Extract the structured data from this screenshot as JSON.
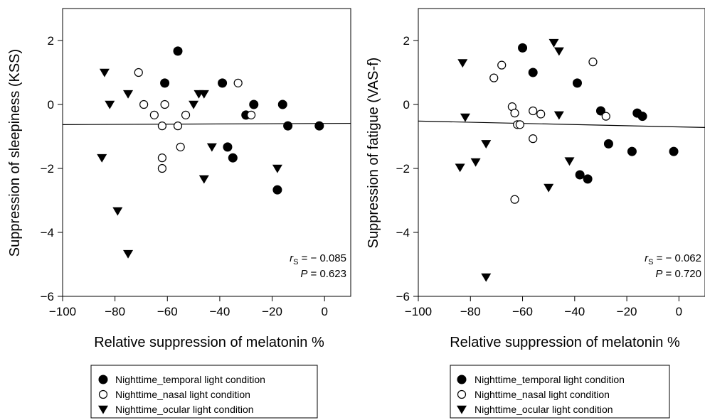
{
  "chart_data": [
    {
      "type": "scatter",
      "xlabel": "Relative suppression of melatonin %",
      "ylabel": "Suppression of sleepiness (KSS)",
      "xlim": [
        -100,
        10
      ],
      "ylim": [
        -6,
        3
      ],
      "xticks": [
        "−100",
        "−80",
        "−60",
        "−40",
        "−20",
        "0"
      ],
      "yticks": [
        "−6",
        "−4",
        "−2",
        "0",
        "2"
      ],
      "stat_rs_symbol": "r",
      "stat_rs_sub": "S",
      "stat_rs_value": " = − 0.085",
      "stat_p_symbol": "P",
      "stat_p_value": " = 0.623",
      "fit_line": [
        [
          -100,
          -0.63
        ],
        [
          10,
          -0.59
        ]
      ],
      "series": [
        {
          "name": "Nighttime_temporal light condition",
          "marker": "filled-circle",
          "points": [
            [
              -56,
              1.67
            ],
            [
              -61,
              0.67
            ],
            [
              -39,
              0.67
            ],
            [
              -27,
              0
            ],
            [
              -16,
              0
            ],
            [
              -30,
              -0.33
            ],
            [
              -14,
              -0.67
            ],
            [
              -2,
              -0.67
            ],
            [
              -37,
              -1.33
            ],
            [
              -35,
              -1.67
            ],
            [
              -18,
              -2.67
            ]
          ]
        },
        {
          "name": "Nighttime_nasal light condition",
          "marker": "open-circle",
          "points": [
            [
              -71,
              1.0
            ],
            [
              -33,
              0.67
            ],
            [
              -69,
              0
            ],
            [
              -61,
              0
            ],
            [
              -65,
              -0.33
            ],
            [
              -53,
              -0.33
            ],
            [
              -28,
              -0.33
            ],
            [
              -62,
              -0.67
            ],
            [
              -56,
              -0.67
            ],
            [
              -55,
              -1.33
            ],
            [
              -62,
              -1.67
            ],
            [
              -62,
              -2.0
            ]
          ]
        },
        {
          "name": "Nighttime_ocular light condition",
          "marker": "filled-triangle",
          "points": [
            [
              -84,
              1.0
            ],
            [
              -75,
              0.33
            ],
            [
              -48,
              0.33
            ],
            [
              -46,
              0.33
            ],
            [
              -82,
              0
            ],
            [
              -50,
              0
            ],
            [
              -85,
              -1.67
            ],
            [
              -43,
              -1.33
            ],
            [
              -46,
              -2.33
            ],
            [
              -18,
              -2.0
            ],
            [
              -79,
              -3.33
            ],
            [
              -75,
              -4.67
            ]
          ]
        }
      ]
    },
    {
      "type": "scatter",
      "xlabel": "Relative suppression of melatonin %",
      "ylabel": "Suppression of fatigue (VAS-f)",
      "xlim": [
        -100,
        10
      ],
      "ylim": [
        -6,
        3
      ],
      "xticks": [
        "−100",
        "−80",
        "−60",
        "−40",
        "−20",
        "0"
      ],
      "yticks": [
        "−6",
        "−4",
        "−2",
        "0",
        "2"
      ],
      "stat_rs_symbol": "r",
      "stat_rs_sub": "S",
      "stat_rs_value": " = − 0.062",
      "stat_p_symbol": "P",
      "stat_p_value": " = 0.720",
      "fit_line": [
        [
          -100,
          -0.52
        ],
        [
          10,
          -0.72
        ]
      ],
      "series": [
        {
          "name": "Nighttime_temporal light condition",
          "marker": "filled-circle",
          "points": [
            [
              -60,
              1.77
            ],
            [
              -56,
              1.0
            ],
            [
              -39,
              0.67
            ],
            [
              -30,
              -0.2
            ],
            [
              -16,
              -0.27
            ],
            [
              -14,
              -0.37
            ],
            [
              -27,
              -1.23
            ],
            [
              -18,
              -1.47
            ],
            [
              -2,
              -1.47
            ],
            [
              -38,
              -2.2
            ],
            [
              -35,
              -2.33
            ]
          ]
        },
        {
          "name": "Nighttime_nasal light condition",
          "marker": "open-circle",
          "points": [
            [
              -68,
              1.23
            ],
            [
              -71,
              0.83
            ],
            [
              -33,
              1.33
            ],
            [
              -64,
              -0.07
            ],
            [
              -63,
              -0.27
            ],
            [
              -56,
              -0.2
            ],
            [
              -53,
              -0.3
            ],
            [
              -28,
              -0.37
            ],
            [
              -62,
              -0.63
            ],
            [
              -61,
              -0.63
            ],
            [
              -56,
              -1.07
            ],
            [
              -63,
              -2.97
            ]
          ]
        },
        {
          "name": "Nighttime_ocular light condition",
          "marker": "filled-triangle",
          "points": [
            [
              -48,
              1.93
            ],
            [
              -46,
              1.67
            ],
            [
              -83,
              1.3
            ],
            [
              -82,
              -0.4
            ],
            [
              -46,
              -0.33
            ],
            [
              -74,
              -1.23
            ],
            [
              -42,
              -1.77
            ],
            [
              -78,
              -1.8
            ],
            [
              -84,
              -1.97
            ],
            [
              -50,
              -2.6
            ],
            [
              -74,
              -5.4
            ]
          ]
        }
      ]
    }
  ],
  "legends": [
    {
      "items": [
        {
          "marker": "filled-circle",
          "label": "Nighttime_temporal light condition"
        },
        {
          "marker": "open-circle",
          "label": "Nighttime_nasal light condition"
        },
        {
          "marker": "filled-triangle",
          "label": "Nighttime_ocular light condition"
        }
      ]
    },
    {
      "items": [
        {
          "marker": "filled-circle",
          "label": "Nighttime_temporal light condition"
        },
        {
          "marker": "open-circle",
          "label": "Nighttime_nasal light condition"
        },
        {
          "marker": "filled-triangle",
          "label": "Nighttime_ocular light condition"
        }
      ]
    }
  ]
}
